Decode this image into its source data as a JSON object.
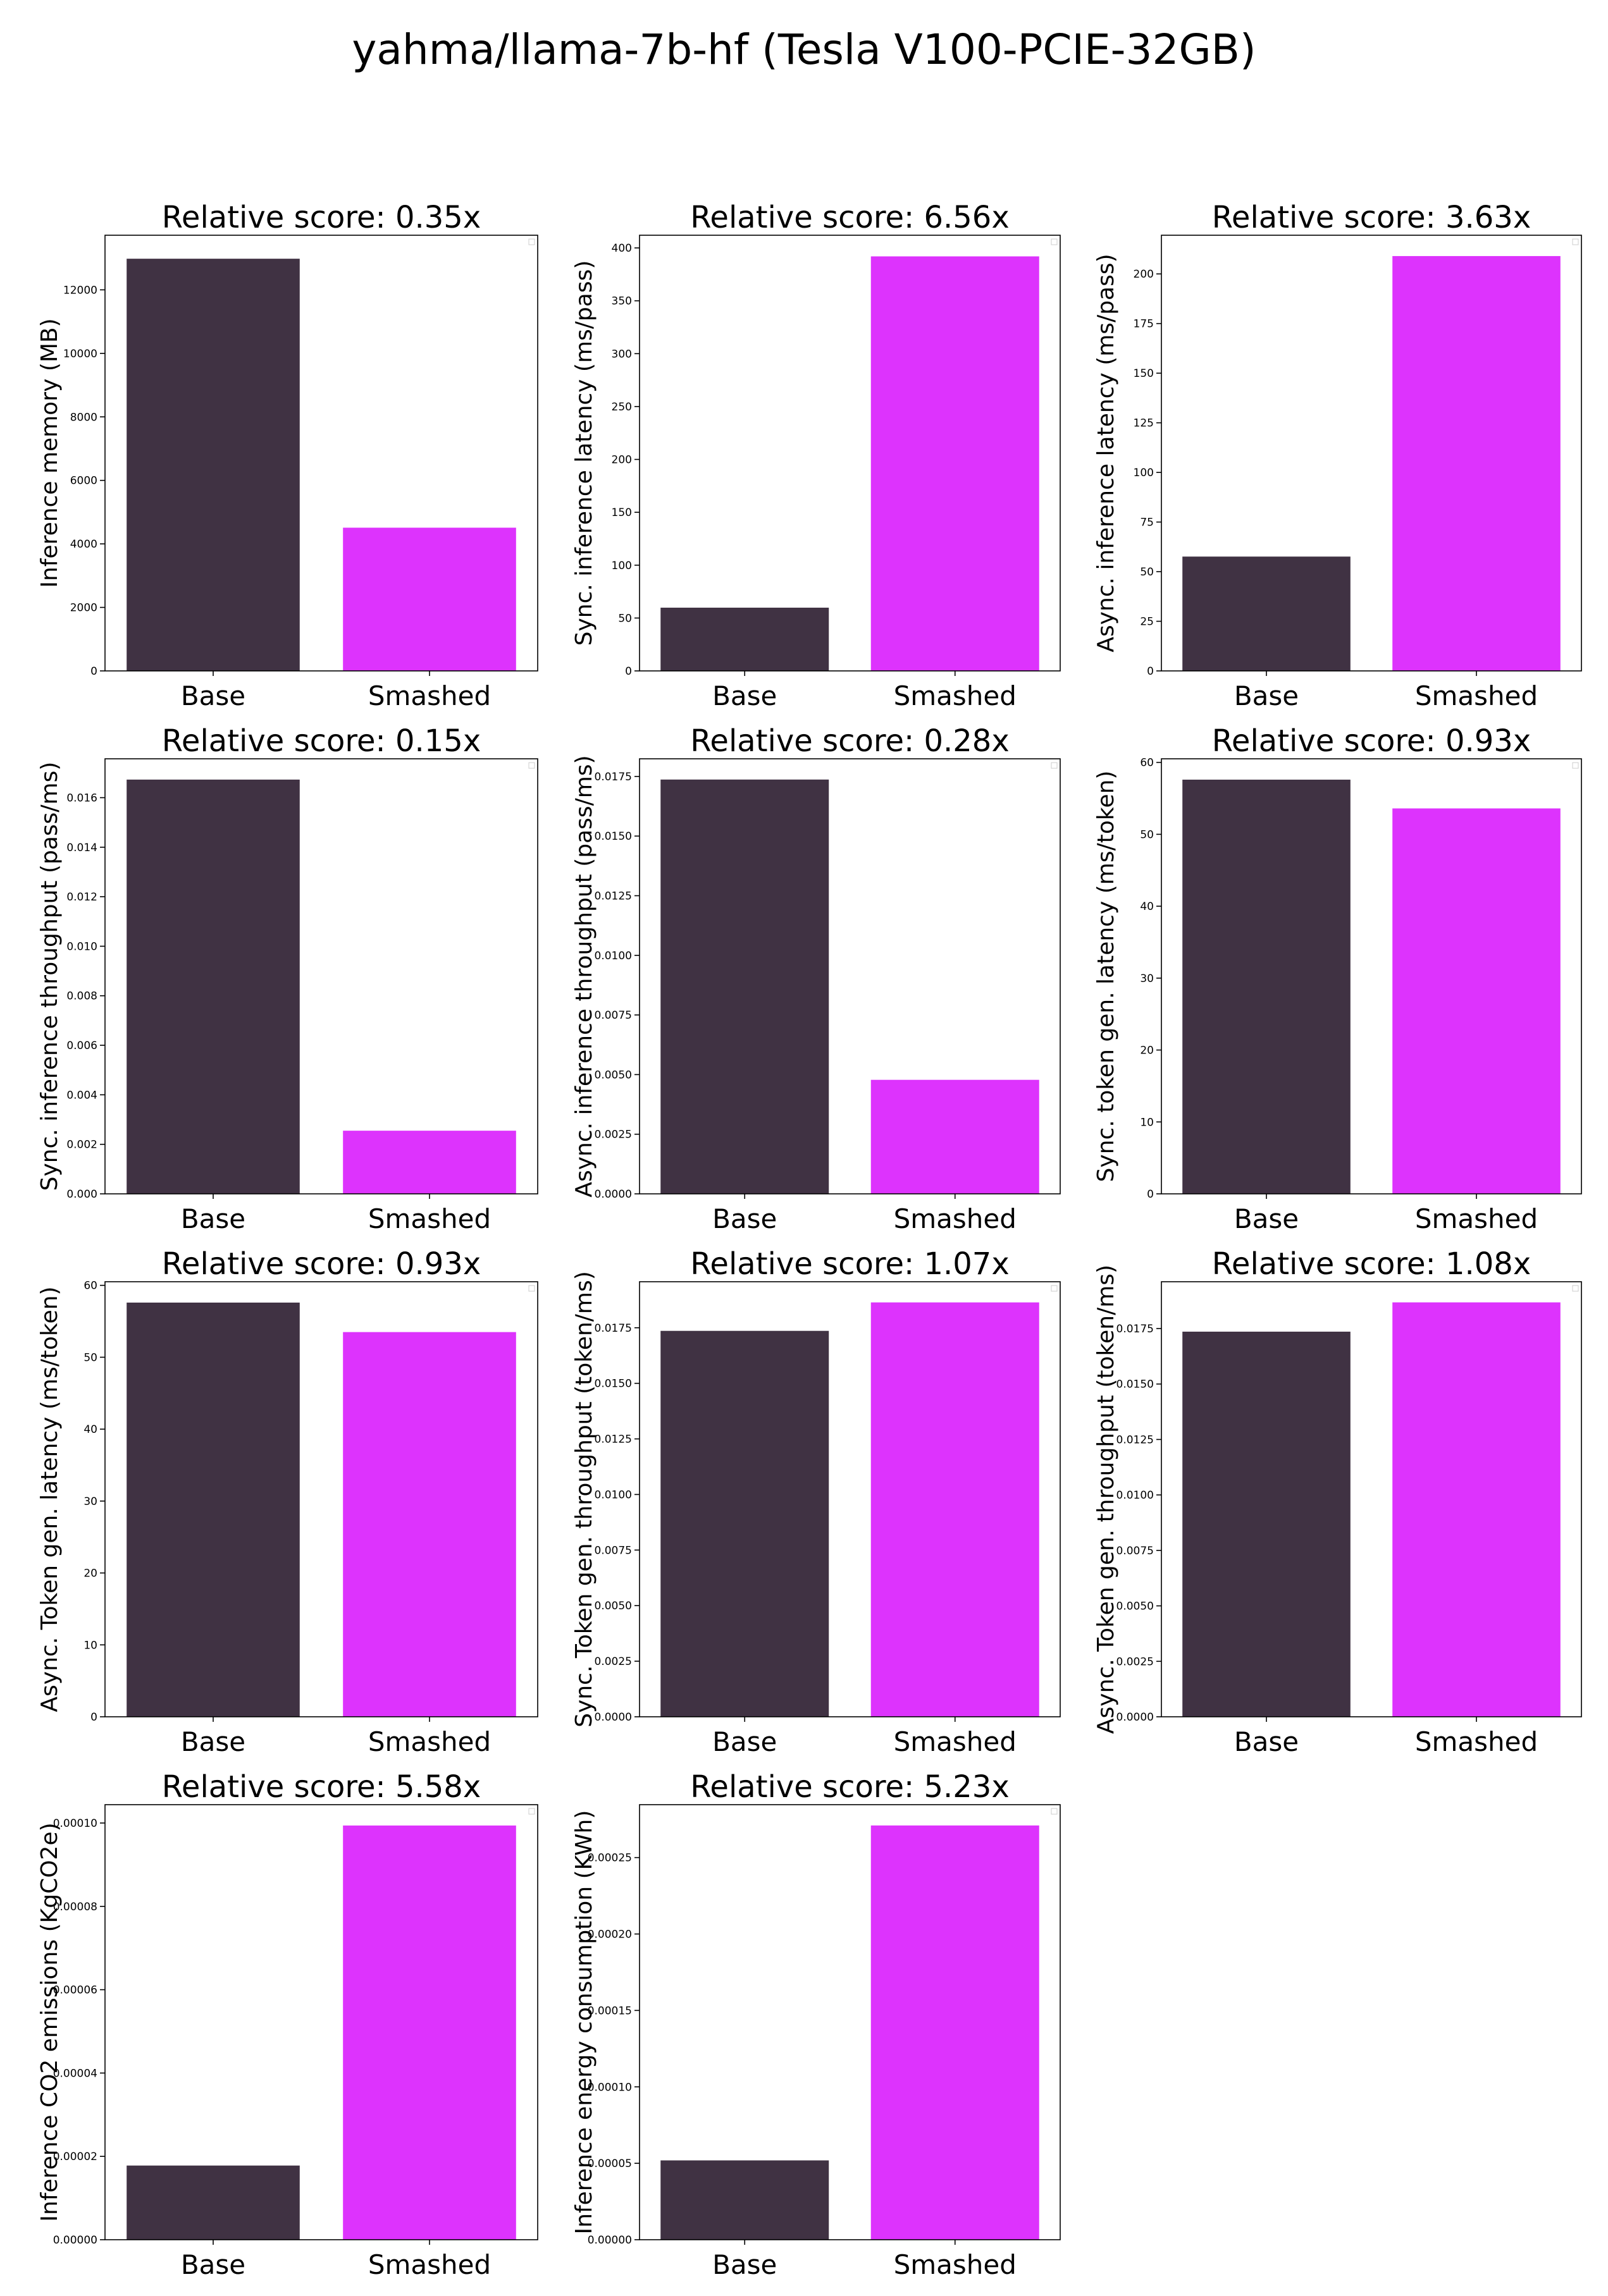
{
  "suptitle": "yahma/llama-7b-hf (Tesla V100-PCIE-32GB)",
  "colors": {
    "base": "#403243",
    "smashed": "#dd33fd"
  },
  "chart_data": [
    {
      "type": "bar",
      "title": "Relative score: 0.35x",
      "xlabel": "",
      "ylabel": "Inference memory (MB)",
      "categories": [
        "Base",
        "Smashed"
      ],
      "values": [
        12980,
        4510
      ],
      "ylim": [
        0,
        13720
      ],
      "yticks": [
        0,
        2000,
        4000,
        6000,
        8000,
        10000,
        12000
      ],
      "tick_labels": [
        "0",
        "2000",
        "4000",
        "6000",
        "8000",
        "10000",
        "12000"
      ]
    },
    {
      "type": "bar",
      "title": "Relative score: 6.56x",
      "xlabel": "",
      "ylabel": "Sync. inference latency (ms/pass)",
      "categories": [
        "Base",
        "Smashed"
      ],
      "values": [
        59.8,
        392
      ],
      "ylim": [
        0,
        412
      ],
      "yticks": [
        0,
        50,
        100,
        150,
        200,
        250,
        300,
        350,
        400
      ],
      "tick_labels": [
        "0",
        "50",
        "100",
        "150",
        "200",
        "250",
        "300",
        "350",
        "400"
      ]
    },
    {
      "type": "bar",
      "title": "Relative score: 3.63x",
      "xlabel": "",
      "ylabel": "Async. inference latency (ms/pass)",
      "categories": [
        "Base",
        "Smashed"
      ],
      "values": [
        57.6,
        209
      ],
      "ylim": [
        0,
        219.5
      ],
      "yticks": [
        0,
        25,
        50,
        75,
        100,
        125,
        150,
        175,
        200
      ],
      "tick_labels": [
        "0",
        "25",
        "50",
        "75",
        "100",
        "125",
        "150",
        "175",
        "200"
      ]
    },
    {
      "type": "bar",
      "title": "Relative score: 0.15x",
      "xlabel": "",
      "ylabel": "Sync. inference throughput (pass/ms)",
      "categories": [
        "Base",
        "Smashed"
      ],
      "values": [
        0.01673,
        0.00255
      ],
      "ylim": [
        0,
        0.01757
      ],
      "yticks": [
        0,
        0.002,
        0.004,
        0.006,
        0.008,
        0.01,
        0.012,
        0.014,
        0.016
      ],
      "tick_labels": [
        "0.000",
        "0.002",
        "0.004",
        "0.006",
        "0.008",
        "0.010",
        "0.012",
        "0.014",
        "0.016"
      ]
    },
    {
      "type": "bar",
      "title": "Relative score: 0.28x",
      "xlabel": "",
      "ylabel": "Async. inference throughput (pass/ms)",
      "categories": [
        "Base",
        "Smashed"
      ],
      "values": [
        0.01737,
        0.00478
      ],
      "ylim": [
        0,
        0.01824
      ],
      "yticks": [
        0,
        0.0025,
        0.005,
        0.0075,
        0.01,
        0.0125,
        0.015,
        0.0175
      ],
      "tick_labels": [
        "0.0000",
        "0.0025",
        "0.0050",
        "0.0075",
        "0.0100",
        "0.0125",
        "0.0150",
        "0.0175"
      ]
    },
    {
      "type": "bar",
      "title": "Relative score: 0.93x",
      "xlabel": "",
      "ylabel": "Sync. token gen. latency (ms/token)",
      "categories": [
        "Base",
        "Smashed"
      ],
      "values": [
        57.6,
        53.6
      ],
      "ylim": [
        0,
        60.5
      ],
      "yticks": [
        0,
        10,
        20,
        30,
        40,
        50,
        60
      ],
      "tick_labels": [
        "0",
        "10",
        "20",
        "30",
        "40",
        "50",
        "60"
      ]
    },
    {
      "type": "bar",
      "title": "Relative score: 0.93x",
      "xlabel": "",
      "ylabel": "Async. Token gen. latency (ms/token)",
      "categories": [
        "Base",
        "Smashed"
      ],
      "values": [
        57.6,
        53.5
      ],
      "ylim": [
        0,
        60.5
      ],
      "yticks": [
        0,
        10,
        20,
        30,
        40,
        50,
        60
      ],
      "tick_labels": [
        "0",
        "10",
        "20",
        "30",
        "40",
        "50",
        "60"
      ]
    },
    {
      "type": "bar",
      "title": "Relative score: 1.07x",
      "xlabel": "",
      "ylabel": "Sync. Token gen. throughput (token/ms)",
      "categories": [
        "Base",
        "Smashed"
      ],
      "values": [
        0.01736,
        0.01864
      ],
      "ylim": [
        0,
        0.01957
      ],
      "yticks": [
        0,
        0.0025,
        0.005,
        0.0075,
        0.01,
        0.0125,
        0.015,
        0.0175
      ],
      "tick_labels": [
        "0.0000",
        "0.0025",
        "0.0050",
        "0.0075",
        "0.0100",
        "0.0125",
        "0.0150",
        "0.0175"
      ]
    },
    {
      "type": "bar",
      "title": "Relative score: 1.08x",
      "xlabel": "",
      "ylabel": "Async. Token gen. throughput (token/ms)",
      "categories": [
        "Base",
        "Smashed"
      ],
      "values": [
        0.01736,
        0.01868
      ],
      "ylim": [
        0,
        0.01961
      ],
      "yticks": [
        0,
        0.0025,
        0.005,
        0.0075,
        0.01,
        0.0125,
        0.015,
        0.0175
      ],
      "tick_labels": [
        "0.0000",
        "0.0025",
        "0.0050",
        "0.0075",
        "0.0100",
        "0.0125",
        "0.0150",
        "0.0175"
      ]
    },
    {
      "type": "bar",
      "title": "Relative score: 5.58x",
      "xlabel": "",
      "ylabel": "Inference CO2 emissions (KgCO2e)",
      "categories": [
        "Base",
        "Smashed"
      ],
      "values": [
        1.78e-05,
        9.94e-05
      ],
      "ylim": [
        0,
        0.0001044
      ],
      "yticks": [
        0,
        2e-05,
        4e-05,
        6e-05,
        8e-05,
        0.0001
      ],
      "tick_labels": [
        "0.00000",
        "0.00002",
        "0.00004",
        "0.00006",
        "0.00008",
        "0.00010"
      ]
    },
    {
      "type": "bar",
      "title": "Relative score: 5.23x",
      "xlabel": "",
      "ylabel": "Inference energy consumption (KWh)",
      "categories": [
        "Base",
        "Smashed"
      ],
      "values": [
        5.19e-05,
        0.000271
      ],
      "ylim": [
        0,
        0.0002846
      ],
      "yticks": [
        0,
        5e-05,
        0.0001,
        0.00015,
        0.0002,
        0.00025
      ],
      "tick_labels": [
        "0.00000",
        "0.00005",
        "0.00010",
        "0.00015",
        "0.00020",
        "0.00025"
      ]
    }
  ]
}
